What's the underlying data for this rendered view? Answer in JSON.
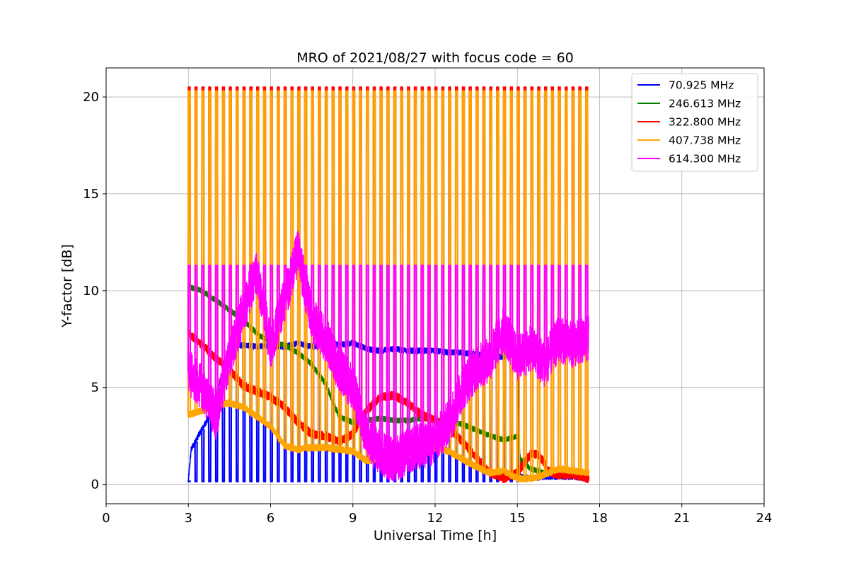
{
  "chart_data": {
    "type": "line",
    "title": "MRO of 2021/08/27 with focus code = 60",
    "xlabel": "Universal Time [h]",
    "ylabel": "Y-factor [dB]",
    "xlim": [
      0,
      24
    ],
    "ylim": [
      -1,
      21.5
    ],
    "xticks": [
      0,
      3,
      6,
      9,
      12,
      15,
      18,
      21,
      24
    ],
    "yticks": [
      0,
      5,
      10,
      15,
      20
    ],
    "grid": true,
    "legend_position": "top-right",
    "pulse": {
      "start": 3.0,
      "end": 17.6,
      "period": 0.25
    },
    "series": [
      {
        "name": " 70.925 MHz",
        "color": "#0000ff",
        "pulse_peak": null,
        "points": [
          [
            3.0,
            0.2
          ],
          [
            3.1,
            1.8
          ],
          [
            3.4,
            2.6
          ],
          [
            3.8,
            3.6
          ],
          [
            4.2,
            5.5
          ],
          [
            4.6,
            7.1
          ],
          [
            5.0,
            7.2
          ],
          [
            5.5,
            7.1
          ],
          [
            6.0,
            7.2
          ],
          [
            6.5,
            7.1
          ],
          [
            7.0,
            7.3
          ],
          [
            7.5,
            7.1
          ],
          [
            8.0,
            7.3
          ],
          [
            8.5,
            7.2
          ],
          [
            9.0,
            7.3
          ],
          [
            9.5,
            7.0
          ],
          [
            10.0,
            6.9
          ],
          [
            10.5,
            7.0
          ],
          [
            11.0,
            6.9
          ],
          [
            11.5,
            6.9
          ],
          [
            12.0,
            6.9
          ],
          [
            12.5,
            6.8
          ],
          [
            13.0,
            6.8
          ],
          [
            13.5,
            6.7
          ],
          [
            14.0,
            6.6
          ],
          [
            14.5,
            6.6
          ],
          [
            15.0,
            6.8
          ],
          [
            15.1,
            0.4
          ],
          [
            15.5,
            0.3
          ],
          [
            16.0,
            0.4
          ],
          [
            16.5,
            0.4
          ],
          [
            17.0,
            0.4
          ],
          [
            17.6,
            0.3
          ]
        ]
      },
      {
        "name": " 246.613 MHz",
        "color": "#008000",
        "pulse_peak": null,
        "points": [
          [
            3.0,
            10.2
          ],
          [
            3.5,
            10.0
          ],
          [
            4.0,
            9.5
          ],
          [
            4.5,
            9.0
          ],
          [
            5.0,
            8.5
          ],
          [
            5.5,
            7.8
          ],
          [
            6.0,
            7.3
          ],
          [
            6.5,
            7.2
          ],
          [
            7.0,
            6.8
          ],
          [
            7.5,
            6.2
          ],
          [
            8.0,
            5.2
          ],
          [
            8.5,
            3.5
          ],
          [
            9.0,
            3.2
          ],
          [
            9.5,
            3.3
          ],
          [
            10.0,
            3.4
          ],
          [
            10.5,
            3.3
          ],
          [
            11.0,
            3.3
          ],
          [
            11.5,
            3.4
          ],
          [
            12.0,
            3.3
          ],
          [
            12.5,
            3.2
          ],
          [
            13.0,
            3.1
          ],
          [
            13.5,
            2.8
          ],
          [
            14.0,
            2.5
          ],
          [
            14.5,
            2.3
          ],
          [
            15.0,
            2.5
          ],
          [
            15.1,
            1.3
          ],
          [
            15.5,
            0.8
          ],
          [
            16.0,
            0.6
          ],
          [
            16.5,
            0.6
          ],
          [
            17.0,
            0.7
          ],
          [
            17.6,
            0.4
          ]
        ]
      },
      {
        "name": " 322.800 MHz",
        "color": "#ff0000",
        "pulse_peak": 20.5,
        "points": [
          [
            3.0,
            7.8
          ],
          [
            3.5,
            7.2
          ],
          [
            4.0,
            6.5
          ],
          [
            4.5,
            5.9
          ],
          [
            5.0,
            5.1
          ],
          [
            5.5,
            4.8
          ],
          [
            6.0,
            4.5
          ],
          [
            6.5,
            4.0
          ],
          [
            7.0,
            3.2
          ],
          [
            7.5,
            2.6
          ],
          [
            8.0,
            2.5
          ],
          [
            8.5,
            2.2
          ],
          [
            9.0,
            2.6
          ],
          [
            9.5,
            3.8
          ],
          [
            10.0,
            4.5
          ],
          [
            10.5,
            4.6
          ],
          [
            11.0,
            4.2
          ],
          [
            11.5,
            3.6
          ],
          [
            12.0,
            3.3
          ],
          [
            12.5,
            2.9
          ],
          [
            13.0,
            2.2
          ],
          [
            13.5,
            1.4
          ],
          [
            14.0,
            0.6
          ],
          [
            14.5,
            0.3
          ],
          [
            15.0,
            0.6
          ],
          [
            15.5,
            1.6
          ],
          [
            15.8,
            1.5
          ],
          [
            16.2,
            0.6
          ],
          [
            16.5,
            0.5
          ],
          [
            17.0,
            0.5
          ],
          [
            17.6,
            0.3
          ]
        ]
      },
      {
        "name": " 407.738 MHz",
        "color": "#ffa500",
        "pulse_peak": 20.3,
        "points": [
          [
            3.0,
            3.6
          ],
          [
            3.5,
            3.8
          ],
          [
            4.0,
            4.1
          ],
          [
            4.5,
            4.2
          ],
          [
            5.0,
            4.0
          ],
          [
            5.5,
            3.5
          ],
          [
            6.0,
            3.0
          ],
          [
            6.5,
            2.0
          ],
          [
            7.0,
            1.8
          ],
          [
            7.5,
            1.9
          ],
          [
            8.0,
            1.9
          ],
          [
            8.5,
            1.8
          ],
          [
            9.0,
            1.7
          ],
          [
            9.5,
            1.2
          ],
          [
            10.0,
            1.4
          ],
          [
            10.5,
            1.7
          ],
          [
            11.0,
            1.5
          ],
          [
            11.5,
            1.6
          ],
          [
            12.0,
            1.9
          ],
          [
            12.5,
            1.7
          ],
          [
            13.0,
            1.3
          ],
          [
            13.5,
            0.9
          ],
          [
            14.0,
            0.6
          ],
          [
            14.5,
            0.7
          ],
          [
            15.0,
            0.3
          ],
          [
            15.5,
            0.3
          ],
          [
            16.0,
            0.5
          ],
          [
            16.5,
            0.8
          ],
          [
            17.0,
            0.7
          ],
          [
            17.6,
            0.6
          ]
        ]
      },
      {
        "name": " 614.300 MHz",
        "color": "#ff00ff",
        "pulse_peak": 11.3,
        "points": [
          [
            3.0,
            5.8
          ],
          [
            3.5,
            5.0
          ],
          [
            4.0,
            3.5
          ],
          [
            4.5,
            6.5
          ],
          [
            5.0,
            9.0
          ],
          [
            5.5,
            11.0
          ],
          [
            6.0,
            7.0
          ],
          [
            6.5,
            9.5
          ],
          [
            7.0,
            12.0
          ],
          [
            7.5,
            8.5
          ],
          [
            8.0,
            7.5
          ],
          [
            8.5,
            6.0
          ],
          [
            9.0,
            5.0
          ],
          [
            9.5,
            2.5
          ],
          [
            10.0,
            1.6
          ],
          [
            10.5,
            1.3
          ],
          [
            11.0,
            1.7
          ],
          [
            11.5,
            2.0
          ],
          [
            12.0,
            2.2
          ],
          [
            12.5,
            3.2
          ],
          [
            13.0,
            5.0
          ],
          [
            13.5,
            6.0
          ],
          [
            14.0,
            6.5
          ],
          [
            14.5,
            8.0
          ],
          [
            15.0,
            6.5
          ],
          [
            15.5,
            7.0
          ],
          [
            16.0,
            6.2
          ],
          [
            16.5,
            7.5
          ],
          [
            17.0,
            7.2
          ],
          [
            17.6,
            7.5
          ]
        ]
      }
    ]
  }
}
